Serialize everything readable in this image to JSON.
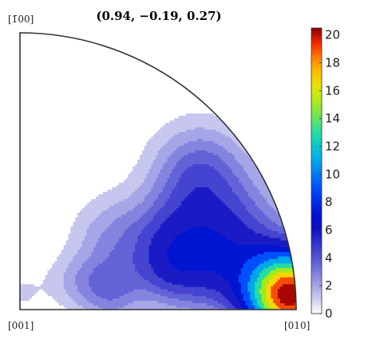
{
  "chart_data": {
    "type": "heatmap",
    "title": "(0.94, −0.19, 0.27)",
    "corner_labels": {
      "top": "[1̄00]",
      "bottom_left": "[001]",
      "bottom_right": "[010]"
    },
    "colorbar": {
      "range": [
        0,
        20.5
      ],
      "ticks": [
        "0",
        "2",
        "4",
        "6",
        "8",
        "10",
        "12",
        "14",
        "16",
        "18",
        "20"
      ],
      "colormap": "jet-white"
    },
    "contour_levels": [
      0.8,
      1.6,
      2.4,
      3.2,
      4.0,
      5.0,
      6.5,
      8.0,
      10.0,
      12.0,
      14.0,
      16.0,
      18.0,
      20.0
    ],
    "peaks": [
      {
        "angle_deg": 3,
        "radius": 0.98,
        "value": 20.5,
        "spread": 0.1
      },
      {
        "angle_deg": 18,
        "radius": 0.8,
        "value": 4.2,
        "spread": 0.16
      },
      {
        "angle_deg": 38,
        "radius": 0.82,
        "value": 3.2,
        "spread": 0.12
      },
      {
        "angle_deg": 25,
        "radius": 0.6,
        "value": 3.0,
        "spread": 0.12
      },
      {
        "angle_deg": 14,
        "radius": 0.55,
        "value": 2.2,
        "spread": 0.09
      },
      {
        "angle_deg": 40,
        "radius": 0.42,
        "value": 1.8,
        "spread": 0.1
      },
      {
        "angle_deg": 18,
        "radius": 0.33,
        "value": 1.7,
        "spread": 0.08
      },
      {
        "angle_deg": 6,
        "radius": 0.33,
        "value": 1.5,
        "spread": 0.08
      },
      {
        "angle_deg": 28,
        "radius": 0.22,
        "value": 1.2,
        "spread": 0.07
      },
      {
        "angle_deg": 88,
        "radius": 0.05,
        "value": 0.6,
        "spread": 0.06
      },
      {
        "angle_deg": 75,
        "radius": 0.1,
        "value": 0.3,
        "spread": 0.08
      },
      {
        "angle_deg": 10,
        "radius": 0.75,
        "value": 2.0,
        "spread": 0.12
      }
    ]
  }
}
